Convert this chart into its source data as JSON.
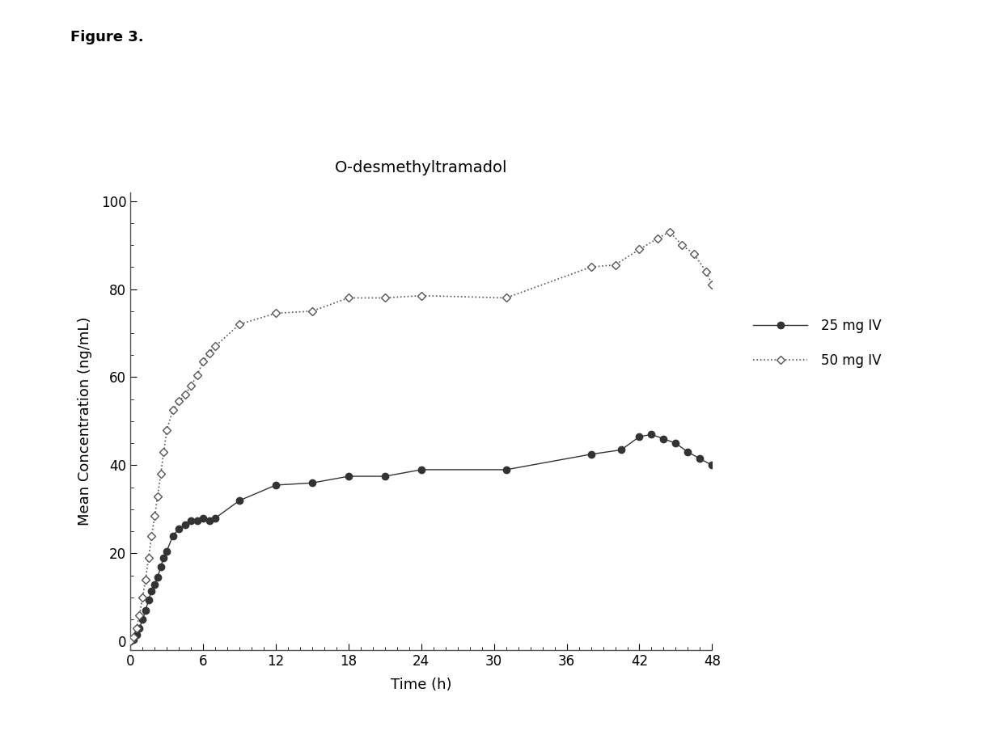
{
  "title": "O-desmethyltramadol",
  "figure_label": "Figure 3.",
  "xlabel": "Time (h)",
  "ylabel": "Mean Concentration (ng/mL)",
  "xlim": [
    0,
    48
  ],
  "ylim": [
    -2,
    102
  ],
  "xticks": [
    0,
    6,
    12,
    18,
    24,
    30,
    36,
    42,
    48
  ],
  "yticks": [
    0,
    20,
    40,
    60,
    80,
    100
  ],
  "series_25mg": {
    "label": "25 mg IV",
    "x": [
      0,
      0.25,
      0.5,
      0.75,
      1.0,
      1.25,
      1.5,
      1.75,
      2.0,
      2.25,
      2.5,
      2.75,
      3.0,
      3.5,
      4.0,
      4.5,
      5.0,
      5.5,
      6.0,
      6.5,
      7.0,
      9.0,
      12.0,
      15.0,
      18.0,
      21.0,
      24.0,
      31.0,
      38.0,
      40.5,
      42.0,
      43.0,
      44.0,
      45.0,
      46.0,
      47.0,
      48.0
    ],
    "y": [
      0,
      0.5,
      1.5,
      3.0,
      5.0,
      7.0,
      9.5,
      11.5,
      13.0,
      14.5,
      17.0,
      19.0,
      20.5,
      24.0,
      25.5,
      26.5,
      27.5,
      27.5,
      28.0,
      27.5,
      28.0,
      32.0,
      35.5,
      36.0,
      37.5,
      37.5,
      39.0,
      39.0,
      42.5,
      43.5,
      46.5,
      47.0,
      46.0,
      45.0,
      43.0,
      41.5,
      40.0
    ],
    "color": "#333333",
    "linestyle": "-",
    "linewidth": 1.0,
    "marker": "o",
    "markersize": 6,
    "markerfacecolor": "#333333",
    "markeredgecolor": "#333333"
  },
  "series_50mg": {
    "label": "50 mg IV",
    "x": [
      0,
      0.25,
      0.5,
      0.75,
      1.0,
      1.25,
      1.5,
      1.75,
      2.0,
      2.25,
      2.5,
      2.75,
      3.0,
      3.5,
      4.0,
      4.5,
      5.0,
      5.5,
      6.0,
      6.5,
      7.0,
      9.0,
      12.0,
      15.0,
      18.0,
      21.0,
      24.0,
      31.0,
      38.0,
      40.0,
      42.0,
      43.5,
      44.5,
      45.5,
      46.5,
      47.5,
      48.0
    ],
    "y": [
      0,
      1.0,
      3.0,
      6.0,
      10.0,
      14.0,
      19.0,
      24.0,
      28.5,
      33.0,
      38.0,
      43.0,
      48.0,
      52.5,
      54.5,
      56.0,
      58.0,
      60.5,
      63.5,
      65.5,
      67.0,
      72.0,
      74.5,
      75.0,
      78.0,
      78.0,
      78.5,
      78.0,
      85.0,
      85.5,
      89.0,
      91.5,
      93.0,
      90.0,
      88.0,
      84.0,
      81.0
    ],
    "color": "#555555",
    "linestyle": "dotted",
    "linewidth": 1.2,
    "marker": "D",
    "markersize": 5,
    "markerfacecolor": "white",
    "markeredgecolor": "#555555"
  },
  "background_color": "#ffffff"
}
